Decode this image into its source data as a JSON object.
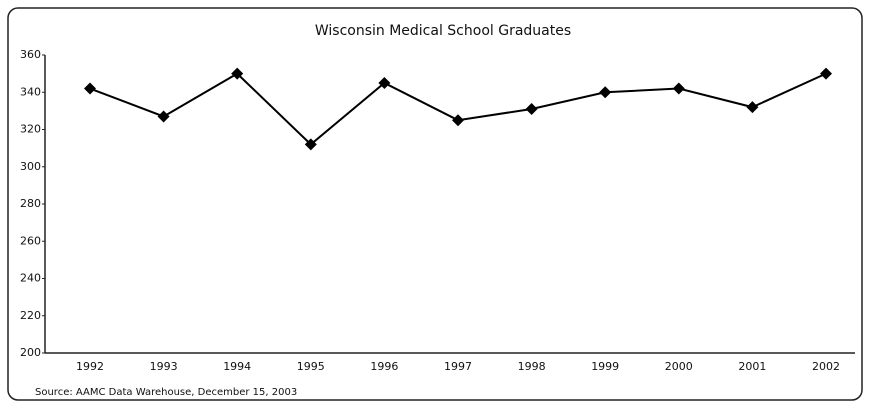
{
  "chart_data": {
    "type": "line",
    "title": "Wisconsin Medical School Graduates",
    "source": "Source: AAMC Data Warehouse, December 15, 2003",
    "categories": [
      "1992",
      "1993",
      "1994",
      "1995",
      "1996",
      "1997",
      "1998",
      "1999",
      "2000",
      "2001",
      "2002"
    ],
    "values": [
      342,
      327,
      350,
      312,
      345,
      325,
      331,
      340,
      342,
      332,
      350
    ],
    "color": "#000000",
    "ylim": [
      200,
      360
    ],
    "yticks": [
      200,
      220,
      240,
      260,
      280,
      300,
      320,
      340,
      360
    ],
    "grid": false
  }
}
